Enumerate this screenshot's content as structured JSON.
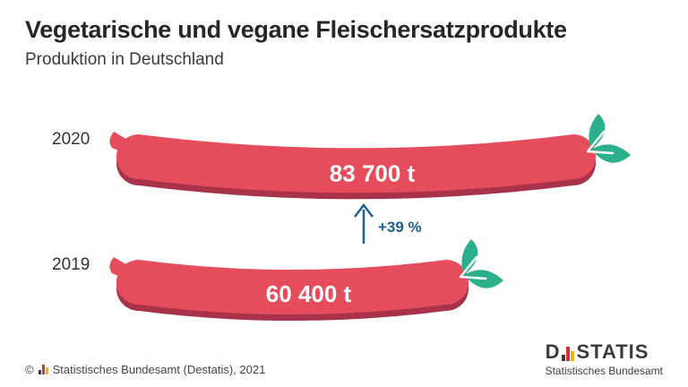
{
  "title": "Vegetarische und vegane Fleischersatzprodukte",
  "subtitle": "Produktion in Deutschland",
  "colors": {
    "sausage": "#e64d5c",
    "sausage_shadow": "#a8324a",
    "leaf": "#2cb08b",
    "arrow": "#1f5e8e"
  },
  "chart_data": {
    "type": "bar",
    "categories": [
      "2020",
      "2019"
    ],
    "values": [
      83700,
      60400
    ],
    "value_labels": [
      "83 700 t",
      "60 400 t"
    ],
    "unit": "t",
    "annotation": "+39 %"
  },
  "footer": {
    "copyright": "©",
    "source": "Statistisches Bundesamt (Destatis), 2021"
  },
  "brand": {
    "name_left": "D",
    "name_right": "STATIS",
    "sub": "Statistisches Bundesamt"
  }
}
